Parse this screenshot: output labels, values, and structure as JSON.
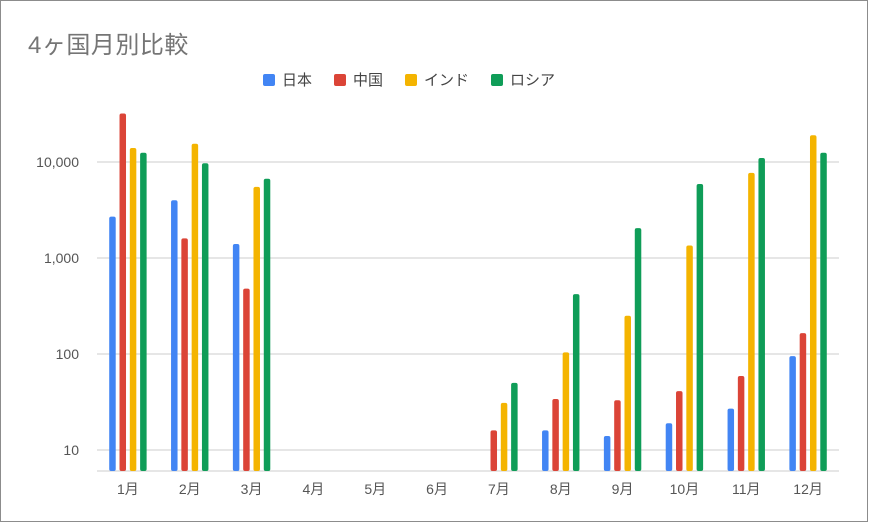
{
  "chart_data": {
    "type": "bar",
    "title": "4ヶ国月別比較",
    "xlabel": "",
    "ylabel": "",
    "y_scale": "log",
    "ylim": [
      6,
      30000
    ],
    "y_ticks": [
      10,
      100,
      1000,
      10000
    ],
    "y_tick_labels": [
      "10",
      "100",
      "1,000",
      "10,000"
    ],
    "grid": true,
    "legend_position": "top",
    "categories": [
      "1月",
      "2月",
      "3月",
      "4月",
      "5月",
      "6月",
      "7月",
      "8月",
      "9月",
      "10月",
      "11月",
      "12月"
    ],
    "series": [
      {
        "name": "日本",
        "color": "#4285f4",
        "values": [
          2700,
          4000,
          1400,
          null,
          null,
          null,
          null,
          16,
          14,
          19,
          27,
          95
        ]
      },
      {
        "name": "中国",
        "color": "#db4437",
        "values": [
          32000,
          1600,
          480,
          null,
          null,
          null,
          16,
          34,
          33,
          41,
          59,
          165
        ]
      },
      {
        "name": "インド",
        "color": "#f4b400",
        "values": [
          14000,
          15500,
          5500,
          null,
          null,
          null,
          31,
          104,
          250,
          1350,
          7700,
          19000
        ]
      },
      {
        "name": "ロシア",
        "color": "#0f9d58",
        "values": [
          12500,
          9700,
          6700,
          null,
          null,
          null,
          50,
          420,
          2050,
          5900,
          11000,
          12500
        ]
      }
    ]
  }
}
